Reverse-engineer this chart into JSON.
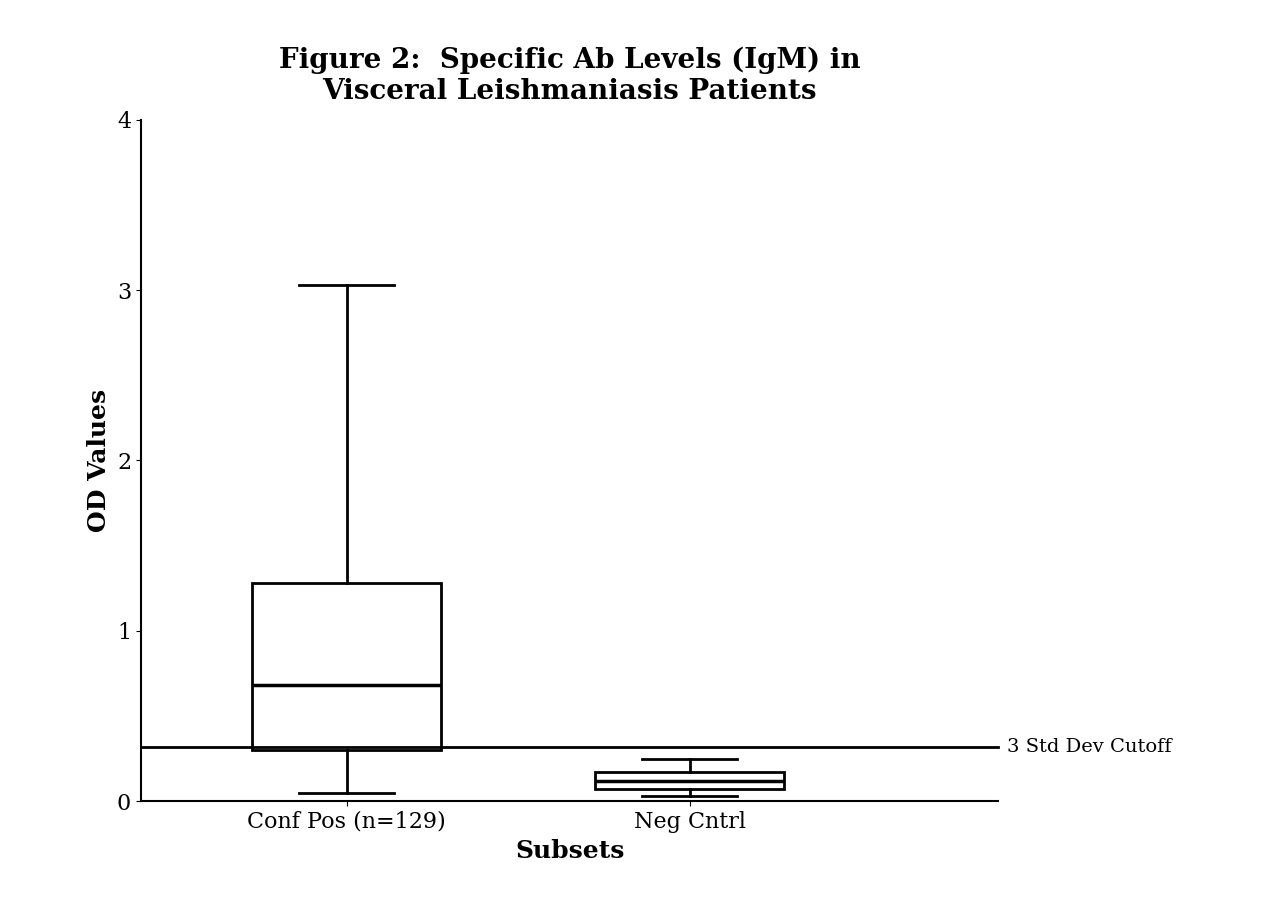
{
  "title_line1": "Figure 2:  Specific Ab Levels (IgM) in",
  "title_line2": "Visceral Leishmaniasis Patients",
  "ylabel": "OD Values",
  "xlabel": "Subsets",
  "ylim": [
    0,
    4
  ],
  "yticks": [
    0,
    1,
    2,
    3,
    4
  ],
  "categories": [
    "Conf Pos (n=129)",
    "Neg Cntrl"
  ],
  "box1": {
    "whisker_low": 0.05,
    "q1": 0.3,
    "median": 0.68,
    "q3": 1.28,
    "whisker_high": 3.03
  },
  "box2": {
    "whisker_low": 0.03,
    "q1": 0.07,
    "median": 0.12,
    "q3": 0.17,
    "whisker_high": 0.25
  },
  "cutoff_value": 0.32,
  "cutoff_label": "3 Std Dev Cutoff",
  "background_color": "#ffffff",
  "box_facecolor": "#ffffff",
  "box_edgecolor": "#000000",
  "line_color": "#000000",
  "title_fontsize": 20,
  "label_fontsize": 18,
  "tick_fontsize": 16,
  "cutoff_fontsize": 14,
  "positions": [
    1,
    2
  ],
  "box_width": 0.55,
  "xlim": [
    0.4,
    2.9
  ]
}
